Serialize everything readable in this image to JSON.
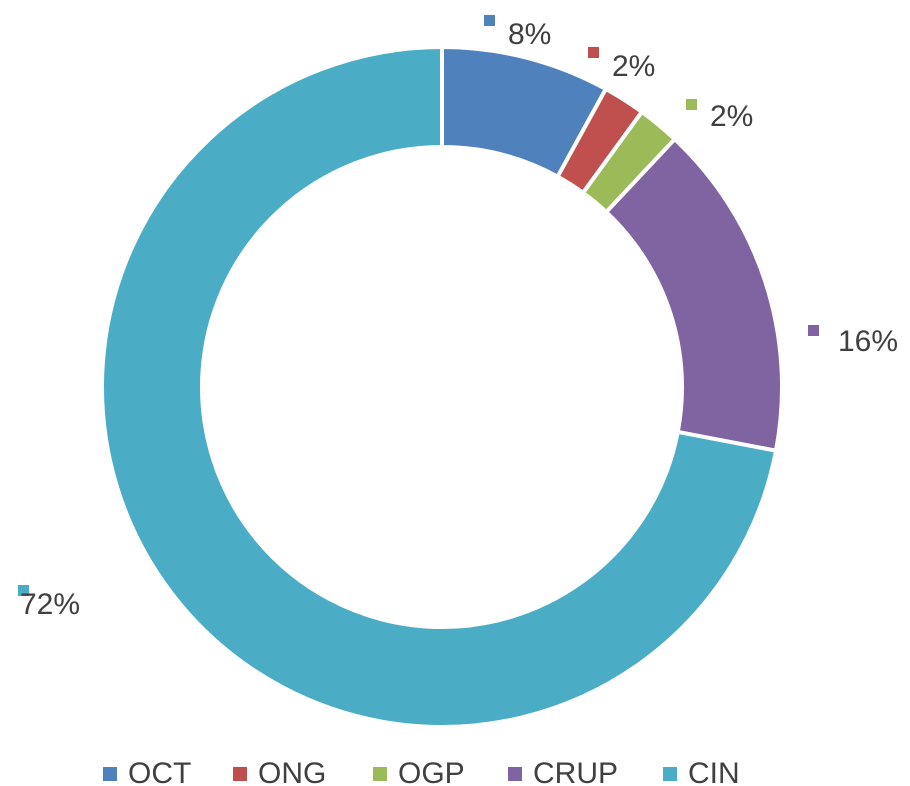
{
  "chart_data": {
    "type": "donut",
    "categories": [
      "OCT",
      "ONG",
      "OGP",
      "CRUP",
      "CIN"
    ],
    "values": [
      8,
      2,
      2,
      16,
      72
    ],
    "value_labels": [
      "8%",
      "2%",
      "2%",
      "16%",
      "72%"
    ],
    "colors": [
      "#4f81bd",
      "#c0504d",
      "#9bbb59",
      "#8064a2",
      "#4bacc6"
    ],
    "legend": "bottom"
  }
}
